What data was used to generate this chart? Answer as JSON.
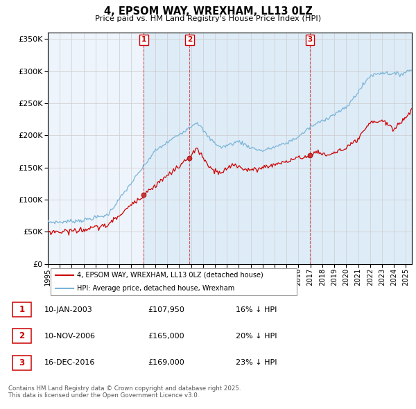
{
  "title": "4, EPSOM WAY, WREXHAM, LL13 0LZ",
  "subtitle": "Price paid vs. HM Land Registry's House Price Index (HPI)",
  "ylim": [
    0,
    360000
  ],
  "yticks": [
    0,
    50000,
    100000,
    150000,
    200000,
    250000,
    300000,
    350000
  ],
  "ytick_labels": [
    "£0",
    "£50K",
    "£100K",
    "£150K",
    "£200K",
    "£250K",
    "£300K",
    "£350K"
  ],
  "hpi_color": "#7ab4d8",
  "sale_color": "#cc0000",
  "vline_color": "#dd3333",
  "grid_color": "#cccccc",
  "background_color": "#ffffff",
  "plot_bg_color": "#eef4fb",
  "shade_color": "#d0e5f5",
  "sales": [
    {
      "date_num": 2003.04,
      "price": 107950,
      "label": "1"
    },
    {
      "date_num": 2006.87,
      "price": 165000,
      "label": "2"
    },
    {
      "date_num": 2016.96,
      "price": 169000,
      "label": "3"
    }
  ],
  "sale_annotations": [
    {
      "label": "1",
      "date": "10-JAN-2003",
      "price": "£107,950",
      "pct": "16% ↓ HPI"
    },
    {
      "label": "2",
      "date": "10-NOV-2006",
      "price": "£165,000",
      "pct": "20% ↓ HPI"
    },
    {
      "label": "3",
      "date": "16-DEC-2016",
      "price": "£169,000",
      "pct": "23% ↓ HPI"
    }
  ],
  "legend_entries": [
    "4, EPSOM WAY, WREXHAM, LL13 0LZ (detached house)",
    "HPI: Average price, detached house, Wrexham"
  ],
  "footer": "Contains HM Land Registry data © Crown copyright and database right 2025.\nThis data is licensed under the Open Government Licence v3.0.",
  "xstart": 1995.0,
  "xend": 2025.5
}
